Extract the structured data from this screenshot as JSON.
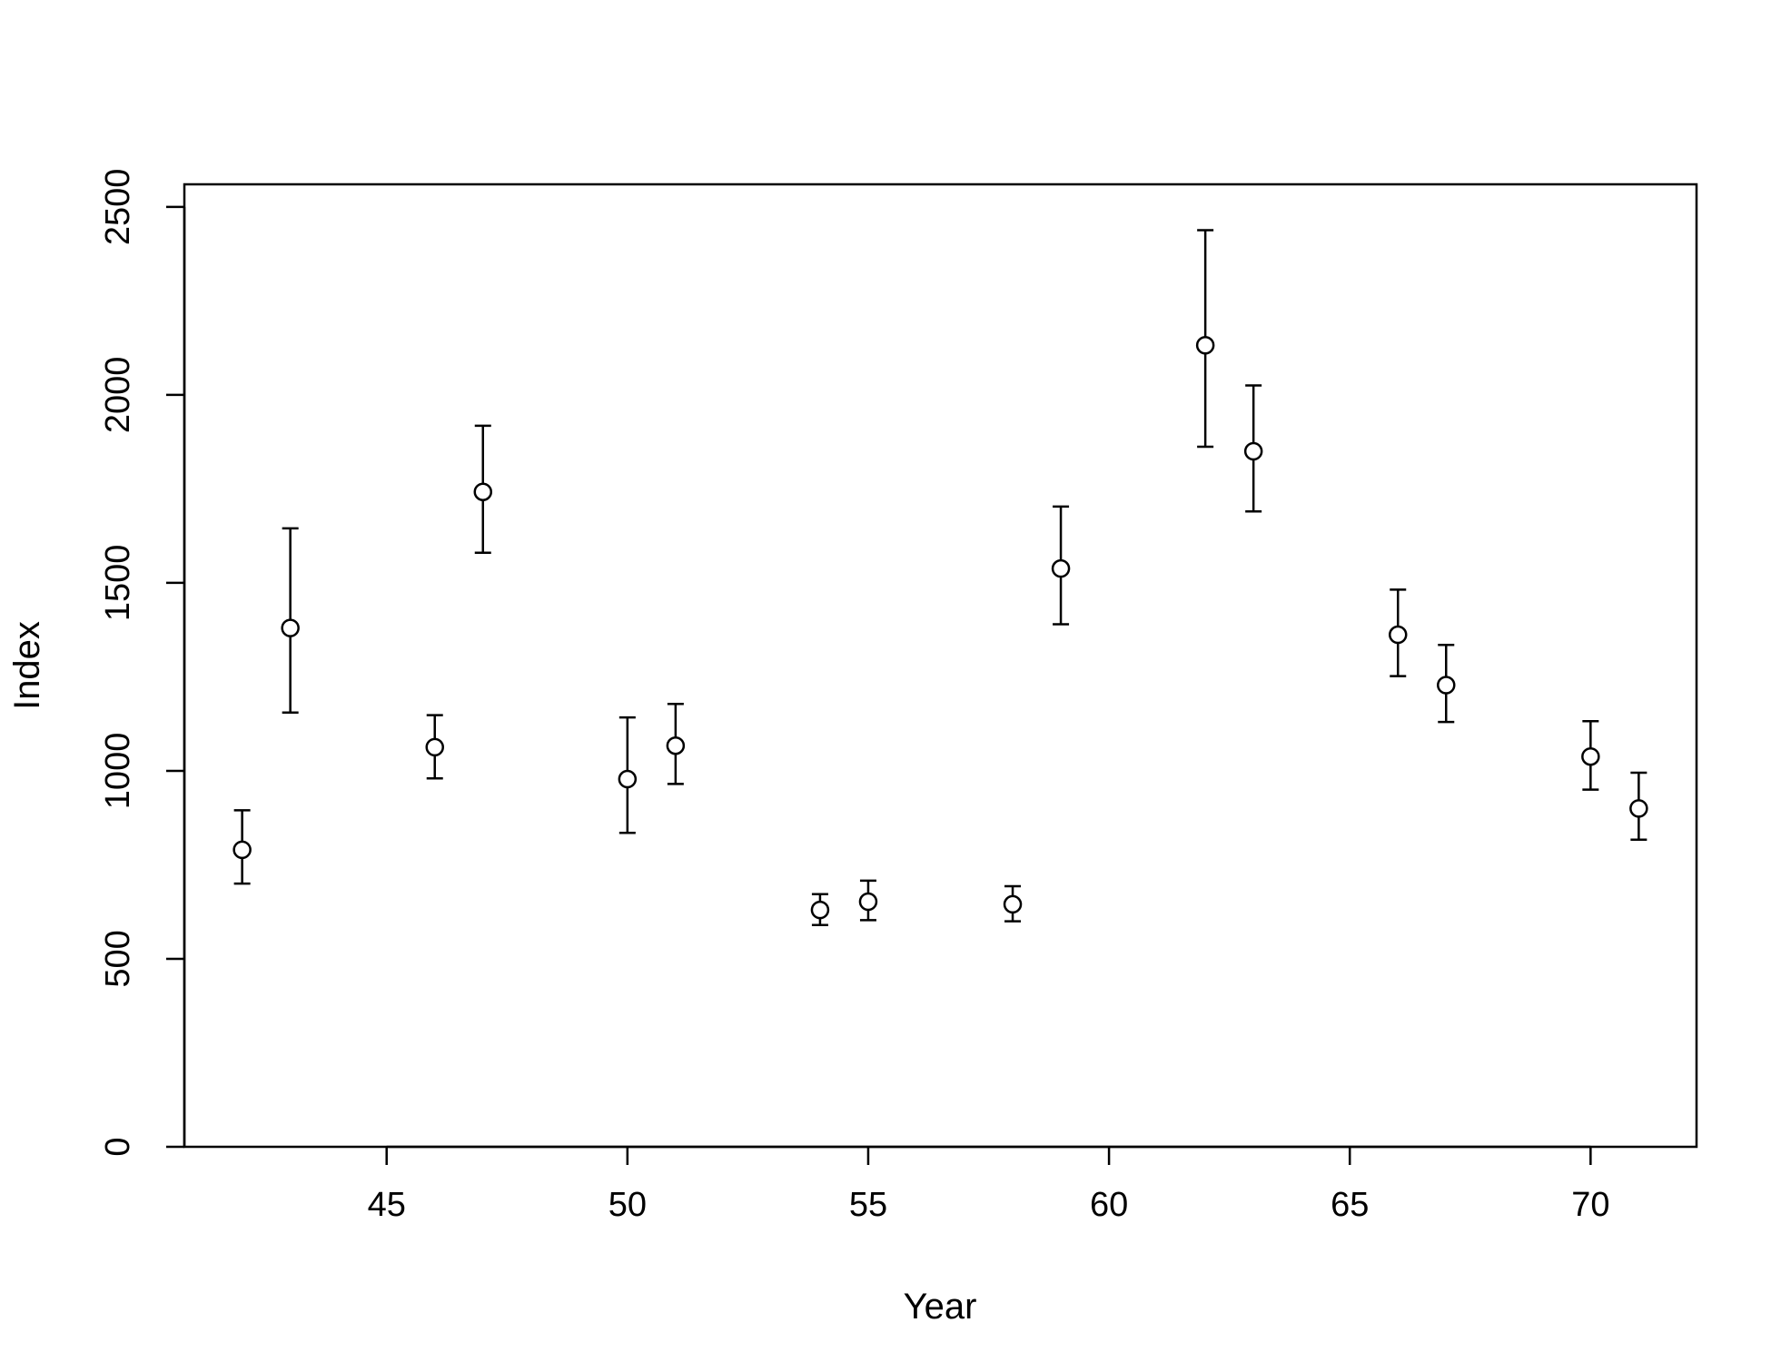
{
  "chart_data": {
    "type": "scatter",
    "title": "",
    "xlabel": "Year",
    "ylabel": "Index",
    "xlim": [
      40.8,
      72.2
    ],
    "ylim": [
      0,
      2560
    ],
    "x_ticks": [
      45,
      50,
      55,
      60,
      65,
      70
    ],
    "y_ticks": [
      0,
      500,
      1000,
      1500,
      2000,
      2500
    ],
    "grid": false,
    "legend": "none",
    "error_bars": true,
    "points": [
      {
        "x": 42,
        "y": 790,
        "lower": 700,
        "upper": 895
      },
      {
        "x": 43,
        "y": 1380,
        "lower": 1155,
        "upper": 1645
      },
      {
        "x": 46,
        "y": 1063,
        "lower": 980,
        "upper": 1148
      },
      {
        "x": 47,
        "y": 1742,
        "lower": 1580,
        "upper": 1918
      },
      {
        "x": 50,
        "y": 978,
        "lower": 835,
        "upper": 1142
      },
      {
        "x": 51,
        "y": 1067,
        "lower": 965,
        "upper": 1178
      },
      {
        "x": 54,
        "y": 630,
        "lower": 590,
        "upper": 672
      },
      {
        "x": 55,
        "y": 652,
        "lower": 603,
        "upper": 708
      },
      {
        "x": 58,
        "y": 645,
        "lower": 600,
        "upper": 693
      },
      {
        "x": 59,
        "y": 1538,
        "lower": 1390,
        "upper": 1703
      },
      {
        "x": 62,
        "y": 2132,
        "lower": 1862,
        "upper": 2438
      },
      {
        "x": 63,
        "y": 1850,
        "lower": 1690,
        "upper": 2025
      },
      {
        "x": 66,
        "y": 1362,
        "lower": 1252,
        "upper": 1482
      },
      {
        "x": 67,
        "y": 1228,
        "lower": 1130,
        "upper": 1335
      },
      {
        "x": 70,
        "y": 1038,
        "lower": 950,
        "upper": 1132
      },
      {
        "x": 71,
        "y": 900,
        "lower": 817,
        "upper": 995
      }
    ]
  }
}
